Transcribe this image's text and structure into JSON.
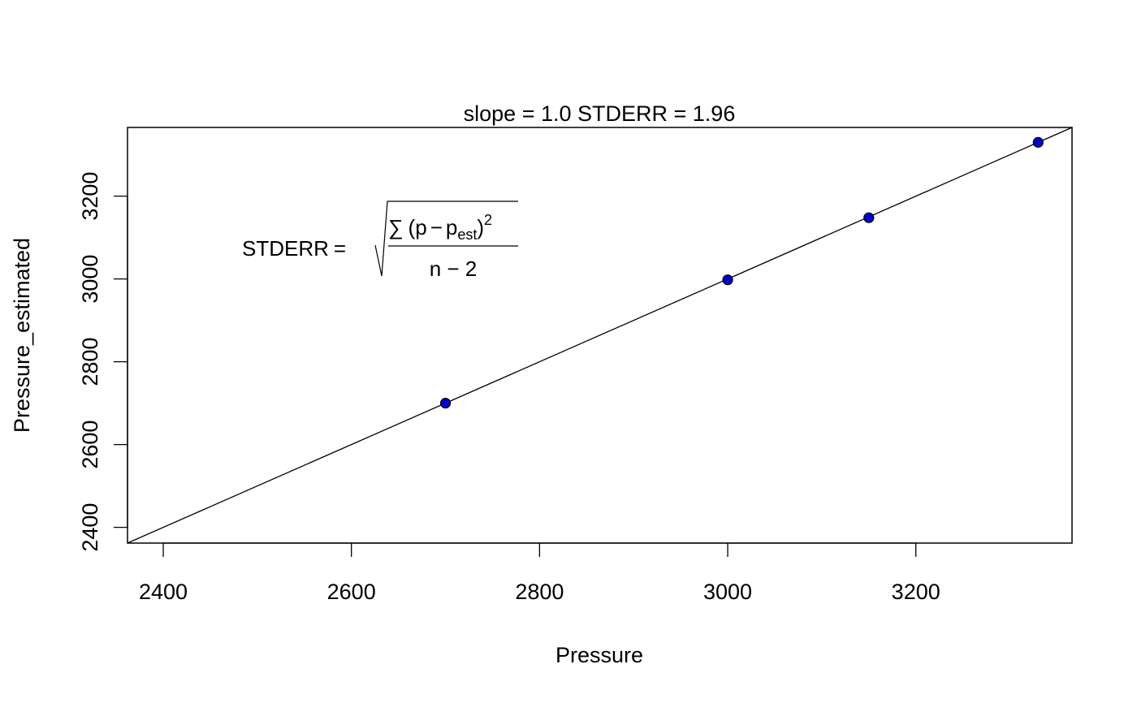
{
  "chart_data": {
    "type": "scatter",
    "title": "slope = 1.0  STDERR =  1.96",
    "xlabel": "Pressure",
    "ylabel": "Pressure_estimated",
    "x_ticks": [
      2400,
      2600,
      2800,
      3000,
      3200
    ],
    "y_ticks": [
      2400,
      2600,
      2800,
      3000,
      3200
    ],
    "xlim": [
      2362,
      3366
    ],
    "ylim": [
      2362,
      3366
    ],
    "grid": false,
    "points": [
      {
        "x": 2700,
        "y": 2700
      },
      {
        "x": 3000,
        "y": 2998
      },
      {
        "x": 3150,
        "y": 3148
      },
      {
        "x": 3330,
        "y": 3330
      }
    ],
    "reference_line": {
      "slope": 1.0,
      "intercept": 0
    },
    "point_color": "#0000cd",
    "annotation": {
      "lhs": "STDERR",
      "sum": "∑",
      "paren_open": "(",
      "p": "p",
      "minus": "−",
      "p_est_base": "p",
      "p_est_sub": "est",
      "paren_close": ")",
      "exponent": "2",
      "denominator": "n − 2"
    }
  }
}
